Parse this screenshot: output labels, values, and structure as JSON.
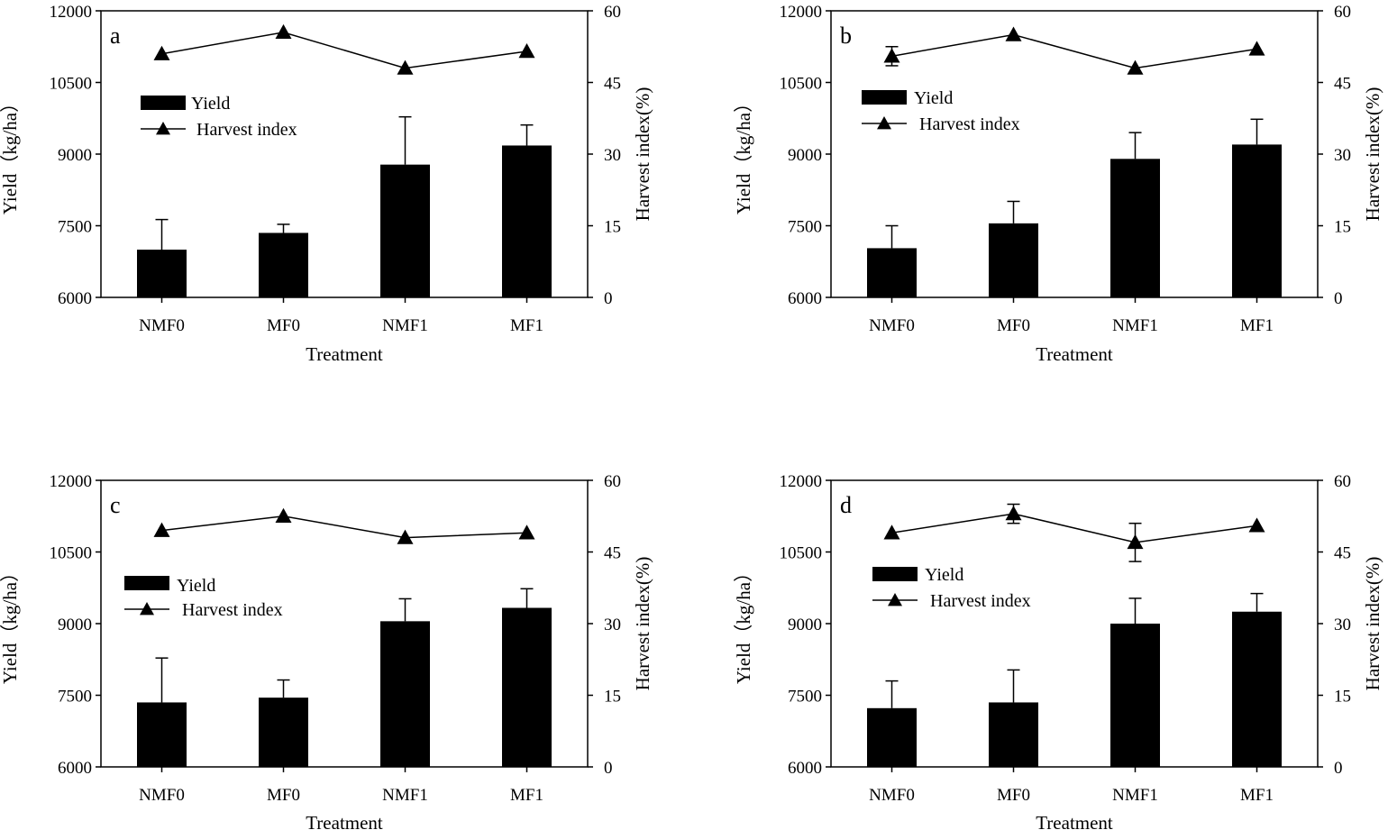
{
  "chart_data": [
    {
      "type": "bar",
      "panel_label": "a",
      "categories": [
        "NMF0",
        "MF0",
        "NMF1",
        "MF1"
      ],
      "xlabel": "Treatment",
      "ylabel": "Yield（kg/ha）",
      "y2label": "Harvest index(%)",
      "ylim": [
        6000,
        12000
      ],
      "y2lim": [
        0,
        60
      ],
      "yticks": [
        "6000",
        "7500",
        "9000",
        "10500",
        "12000"
      ],
      "y2ticks": [
        "0",
        "15",
        "30",
        "45",
        "60"
      ],
      "legend": {
        "position": "upper-left",
        "yield_label": "Yield",
        "hi_label": "Harvest index"
      },
      "series": [
        {
          "name": "Yield",
          "kind": "bar",
          "values": [
            7000,
            7350,
            8780,
            9180
          ],
          "errors": [
            630,
            180,
            1000,
            430
          ]
        },
        {
          "name": "Harvest index",
          "kind": "line-triangle",
          "values": [
            51,
            55.5,
            48,
            51.5
          ],
          "errors": [
            0,
            0,
            0,
            0
          ]
        }
      ]
    },
    {
      "type": "bar",
      "panel_label": "b",
      "categories": [
        "NMF0",
        "MF0",
        "NMF1",
        "MF1"
      ],
      "xlabel": "Treatment",
      "ylabel": "Yield（kg/ha）",
      "y2label": "Harvest index(%)",
      "ylim": [
        6000,
        12000
      ],
      "y2lim": [
        0,
        60
      ],
      "yticks": [
        "6000",
        "7500",
        "9000",
        "10500",
        "12000"
      ],
      "y2ticks": [
        "0",
        "15",
        "30",
        "45",
        "60"
      ],
      "legend": {
        "position": "upper-left",
        "yield_label": "Yield",
        "hi_label": "Harvest index"
      },
      "series": [
        {
          "name": "Yield",
          "kind": "bar",
          "values": [
            7030,
            7550,
            8900,
            9200
          ],
          "errors": [
            470,
            460,
            550,
            530
          ]
        },
        {
          "name": "Harvest index",
          "kind": "line-triangle",
          "values": [
            50.5,
            55,
            48,
            52
          ],
          "errors": [
            2,
            0,
            0,
            0
          ]
        }
      ]
    },
    {
      "type": "bar",
      "panel_label": "c",
      "categories": [
        "NMF0",
        "MF0",
        "NMF1",
        "MF1"
      ],
      "xlabel": "Treatment",
      "ylabel": "Yield（kg/ha）",
      "y2label": "Harvest index(%)",
      "ylim": [
        6000,
        12000
      ],
      "y2lim": [
        0,
        60
      ],
      "yticks": [
        "6000",
        "7500",
        "9000",
        "10500",
        "12000"
      ],
      "y2ticks": [
        "0",
        "15",
        "30",
        "45",
        "60"
      ],
      "legend": {
        "position": "center-left",
        "yield_label": "Yield",
        "hi_label": "Harvest index"
      },
      "series": [
        {
          "name": "Yield",
          "kind": "bar",
          "values": [
            7350,
            7450,
            9050,
            9330
          ],
          "errors": [
            930,
            370,
            470,
            400
          ]
        },
        {
          "name": "Harvest index",
          "kind": "line-triangle",
          "values": [
            49.5,
            52.5,
            48,
            49
          ],
          "errors": [
            0,
            0,
            0,
            0
          ]
        }
      ]
    },
    {
      "type": "bar",
      "panel_label": "d",
      "categories": [
        "NMF0",
        "MF0",
        "NMF1",
        "MF1"
      ],
      "xlabel": "Treatment",
      "ylabel": "Yield（kg/ha）",
      "y2label": "Harvest index(%)",
      "ylim": [
        6000,
        12000
      ],
      "y2lim": [
        0,
        60
      ],
      "yticks": [
        "6000",
        "7500",
        "9000",
        "10500",
        "12000"
      ],
      "y2ticks": [
        "0",
        "15",
        "30",
        "45",
        "60"
      ],
      "legend": {
        "position": "center-left",
        "yield_label": "Yield",
        "hi_label": "Harvest index"
      },
      "series": [
        {
          "name": "Yield",
          "kind": "bar",
          "values": [
            7230,
            7350,
            9000,
            9250
          ],
          "errors": [
            570,
            680,
            530,
            380
          ]
        },
        {
          "name": "Harvest index",
          "kind": "line-triangle",
          "values": [
            49,
            53,
            47,
            50.5
          ],
          "errors": [
            0,
            2,
            4,
            0
          ]
        }
      ]
    }
  ]
}
